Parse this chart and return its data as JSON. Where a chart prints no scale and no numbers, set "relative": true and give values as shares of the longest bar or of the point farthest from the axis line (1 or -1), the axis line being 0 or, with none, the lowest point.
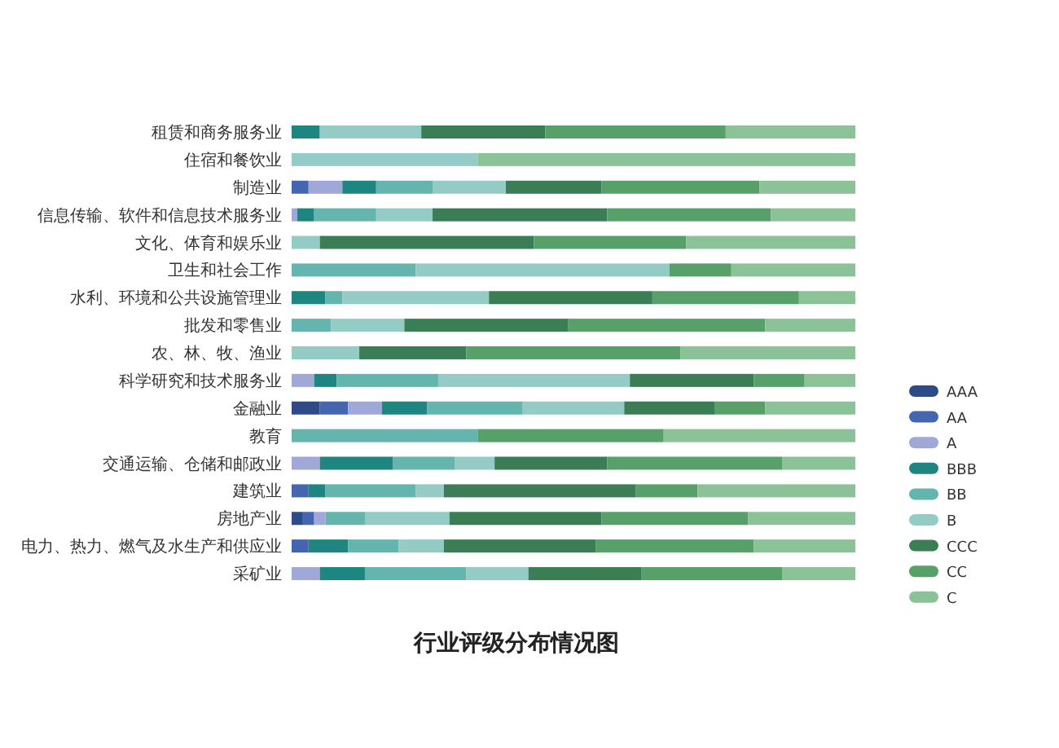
{
  "chart_data": {
    "type": "bar",
    "orientation": "horizontal",
    "stacked": true,
    "relative": true,
    "title": "行业评级分布情况图",
    "legend": "right",
    "categories": [
      "租赁和商务服务业",
      "住宿和餐饮业",
      "制造业",
      "信息传输、软件和信息技术服务业",
      "文化、体育和娱乐业",
      "卫生和社会工作",
      "水利、环境和公共设施管理业",
      "批发和零售业",
      "农、林、牧、渔业",
      "科学研究和技术服务业",
      "金融业",
      "教育",
      "交通运输、仓储和邮政业",
      "建筑业",
      "房地产业",
      "电力、热力、燃气及水生产和供应业",
      "采矿业"
    ],
    "series": [
      {
        "name": "AAA",
        "color": "#2e4a87",
        "values": [
          0,
          0,
          0,
          0,
          0,
          0,
          0,
          0,
          0,
          0,
          0.05,
          0,
          0,
          0,
          0.02,
          0,
          0
        ]
      },
      {
        "name": "AA",
        "color": "#4466b0",
        "values": [
          0,
          0,
          0.03,
          0,
          0,
          0,
          0,
          0,
          0,
          0,
          0.05,
          0,
          0,
          0.03,
          0.02,
          0.03,
          0
        ]
      },
      {
        "name": "A",
        "color": "#9fa8d6",
        "values": [
          0,
          0,
          0.06,
          0.01,
          0,
          0,
          0,
          0,
          0,
          0.04,
          0.06,
          0,
          0.05,
          0,
          0.02,
          0,
          0.05
        ]
      },
      {
        "name": "BBB",
        "color": "#1f8580",
        "values": [
          0.05,
          0,
          0.06,
          0.03,
          0,
          0,
          0.06,
          0,
          0,
          0.04,
          0.08,
          0,
          0.13,
          0.03,
          0,
          0.07,
          0.08
        ]
      },
      {
        "name": "BB",
        "color": "#63b5ae",
        "values": [
          0,
          0,
          0.1,
          0.11,
          0,
          0.22,
          0.03,
          0.07,
          0,
          0.18,
          0.17,
          0.33,
          0.11,
          0.16,
          0.07,
          0.09,
          0.18
        ]
      },
      {
        "name": "B",
        "color": "#94cbc4",
        "values": [
          0.18,
          0.33,
          0.13,
          0.1,
          0.05,
          0.45,
          0.26,
          0.13,
          0.12,
          0.34,
          0.18,
          0,
          0.07,
          0.05,
          0.15,
          0.08,
          0.11
        ]
      },
      {
        "name": "CCC",
        "color": "#3b7d55",
        "values": [
          0.22,
          0,
          0.17,
          0.31,
          0.38,
          0,
          0.29,
          0.29,
          0.19,
          0.22,
          0.16,
          0,
          0.2,
          0.34,
          0.27,
          0.27,
          0.2
        ]
      },
      {
        "name": "CC",
        "color": "#58a06a",
        "values": [
          0.32,
          0,
          0.28,
          0.29,
          0.27,
          0.11,
          0.26,
          0.35,
          0.38,
          0.09,
          0.09,
          0.33,
          0.31,
          0.11,
          0.26,
          0.28,
          0.25
        ]
      },
      {
        "name": "C",
        "color": "#8cc298",
        "values": [
          0.23,
          0.67,
          0.17,
          0.15,
          0.3,
          0.22,
          0.1,
          0.16,
          0.31,
          0.09,
          0.16,
          0.34,
          0.13,
          0.28,
          0.19,
          0.18,
          0.13
        ]
      }
    ]
  }
}
